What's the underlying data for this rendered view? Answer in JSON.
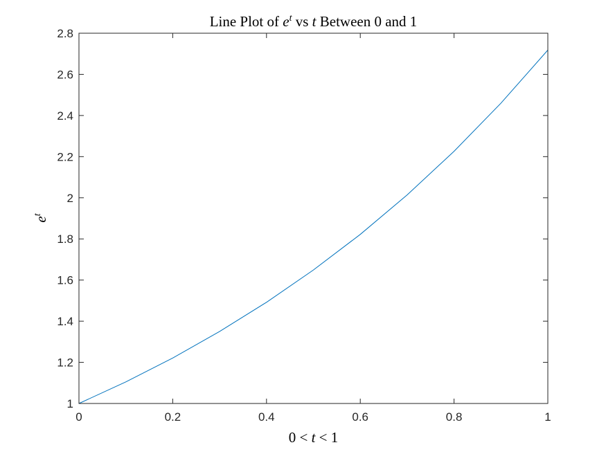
{
  "chart_data": {
    "type": "line",
    "title": {
      "prefix": "Line Plot of ",
      "base": "e",
      "sup": "t",
      "mid": " vs ",
      "var": "t",
      "suffix": " Between 0 and 1"
    },
    "xlabel": {
      "left": "0 < ",
      "var": "t",
      "right": " < 1"
    },
    "ylabel": {
      "base": "e",
      "sup": "t"
    },
    "xlim": [
      0,
      1
    ],
    "ylim": [
      1,
      2.8
    ],
    "xticks": [
      0,
      0.2,
      0.4,
      0.6,
      0.8,
      1
    ],
    "xtick_labels": [
      "0",
      "0.2",
      "0.4",
      "0.6",
      "0.8",
      "1"
    ],
    "yticks": [
      1,
      1.2,
      1.4,
      1.6,
      1.8,
      2,
      2.2,
      2.4,
      2.6,
      2.8
    ],
    "ytick_labels": [
      "1",
      "1.2",
      "1.4",
      "1.6",
      "1.8",
      "2",
      "2.2",
      "2.4",
      "2.6",
      "2.8"
    ],
    "grid": false,
    "line_color": "#0072BD",
    "series": [
      {
        "x": [
          0,
          0.1,
          0.2,
          0.3,
          0.4,
          0.5,
          0.6,
          0.7,
          0.8,
          0.9,
          1.0
        ],
        "y": [
          1.0,
          1.105,
          1.221,
          1.35,
          1.492,
          1.649,
          1.822,
          2.014,
          2.226,
          2.46,
          2.718
        ]
      }
    ]
  }
}
